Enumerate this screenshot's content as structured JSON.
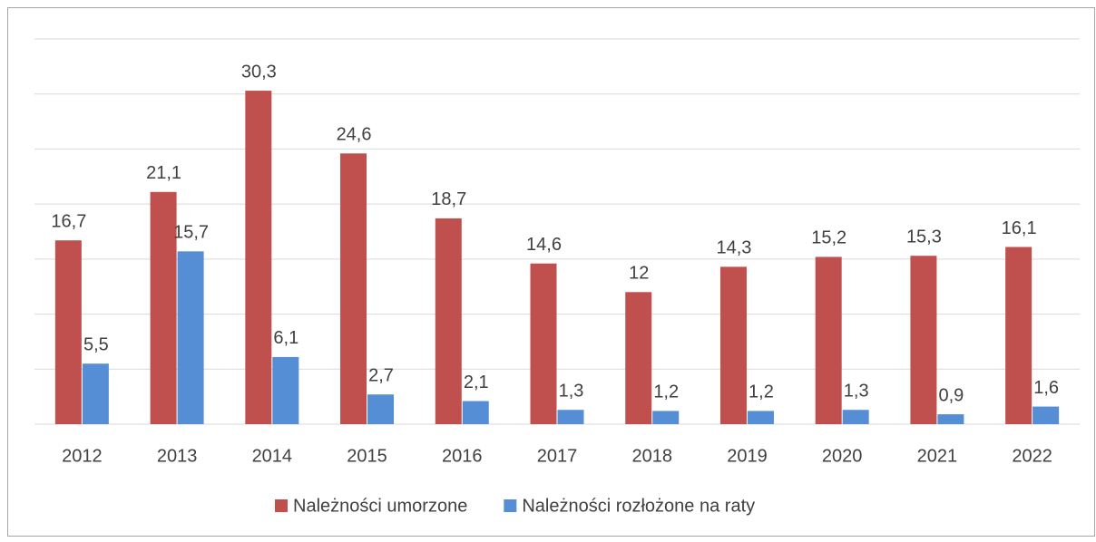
{
  "chart_data": {
    "type": "bar",
    "categories": [
      "2012",
      "2013",
      "2014",
      "2015",
      "2016",
      "2017",
      "2018",
      "2019",
      "2020",
      "2021",
      "2022"
    ],
    "series": [
      {
        "name": "Należności umorzone",
        "color": "#c0504d",
        "values": [
          16.7,
          21.1,
          30.3,
          24.6,
          18.7,
          14.6,
          12,
          14.3,
          15.2,
          15.3,
          16.1
        ],
        "value_labels": [
          "16,7",
          "21,1",
          "30,3",
          "24,6",
          "18,7",
          "14,6",
          "12",
          "14,3",
          "15,2",
          "15,3",
          "16,1"
        ]
      },
      {
        "name": "Należności rozłożone na raty",
        "color": "#558ed5",
        "values": [
          5.5,
          15.7,
          6.1,
          2.7,
          2.1,
          1.3,
          1.2,
          1.2,
          1.3,
          0.9,
          1.6
        ],
        "value_labels": [
          "5,5",
          "15,7",
          "6,1",
          "2,7",
          "2,1",
          "1,3",
          "1,2",
          "1,2",
          "1,3",
          "0,9",
          "1,6"
        ]
      }
    ],
    "ylim": [
      0,
      35
    ],
    "yticks": [
      0,
      5,
      10,
      15,
      20,
      25,
      30,
      35
    ],
    "grid": true,
    "legend": "bottom"
  }
}
